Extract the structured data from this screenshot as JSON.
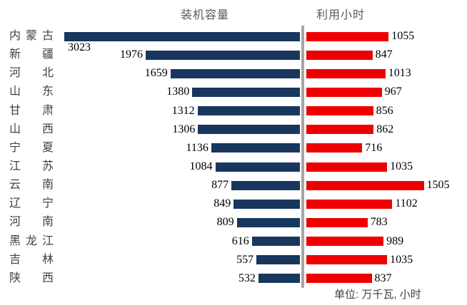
{
  "chart_data": {
    "type": "bar",
    "subtype": "bidirectional-tornado",
    "orientation": "horizontal",
    "categories": [
      "内蒙古",
      "新疆",
      "河北",
      "山东",
      "甘肃",
      "山西",
      "宁夏",
      "江苏",
      "云南",
      "辽宁",
      "河南",
      "黑龙江",
      "吉林",
      "陕西"
    ],
    "series": [
      {
        "name": "装机容量",
        "side": "left",
        "color": "#17375E",
        "values": [
          3023,
          1976,
          1659,
          1380,
          1312,
          1306,
          1136,
          1084,
          877,
          849,
          809,
          616,
          557,
          532
        ]
      },
      {
        "name": "利用小时",
        "side": "right",
        "color": "#EE0000",
        "values": [
          1055,
          847,
          1013,
          967,
          856,
          862,
          716,
          1035,
          1505,
          1102,
          783,
          989,
          1035,
          837
        ]
      }
    ],
    "unit_note": "单位: 万千瓦, 小时",
    "left_axis_max": 3023,
    "right_axis_max": 1505,
    "grid": false,
    "legend_position": "top",
    "colors": {
      "left_bar": "#17375E",
      "right_bar": "#EE0000",
      "divider": "#A6A6A6",
      "category_text": "#404040",
      "title_text": "#595959",
      "value_text": "#000000"
    }
  }
}
